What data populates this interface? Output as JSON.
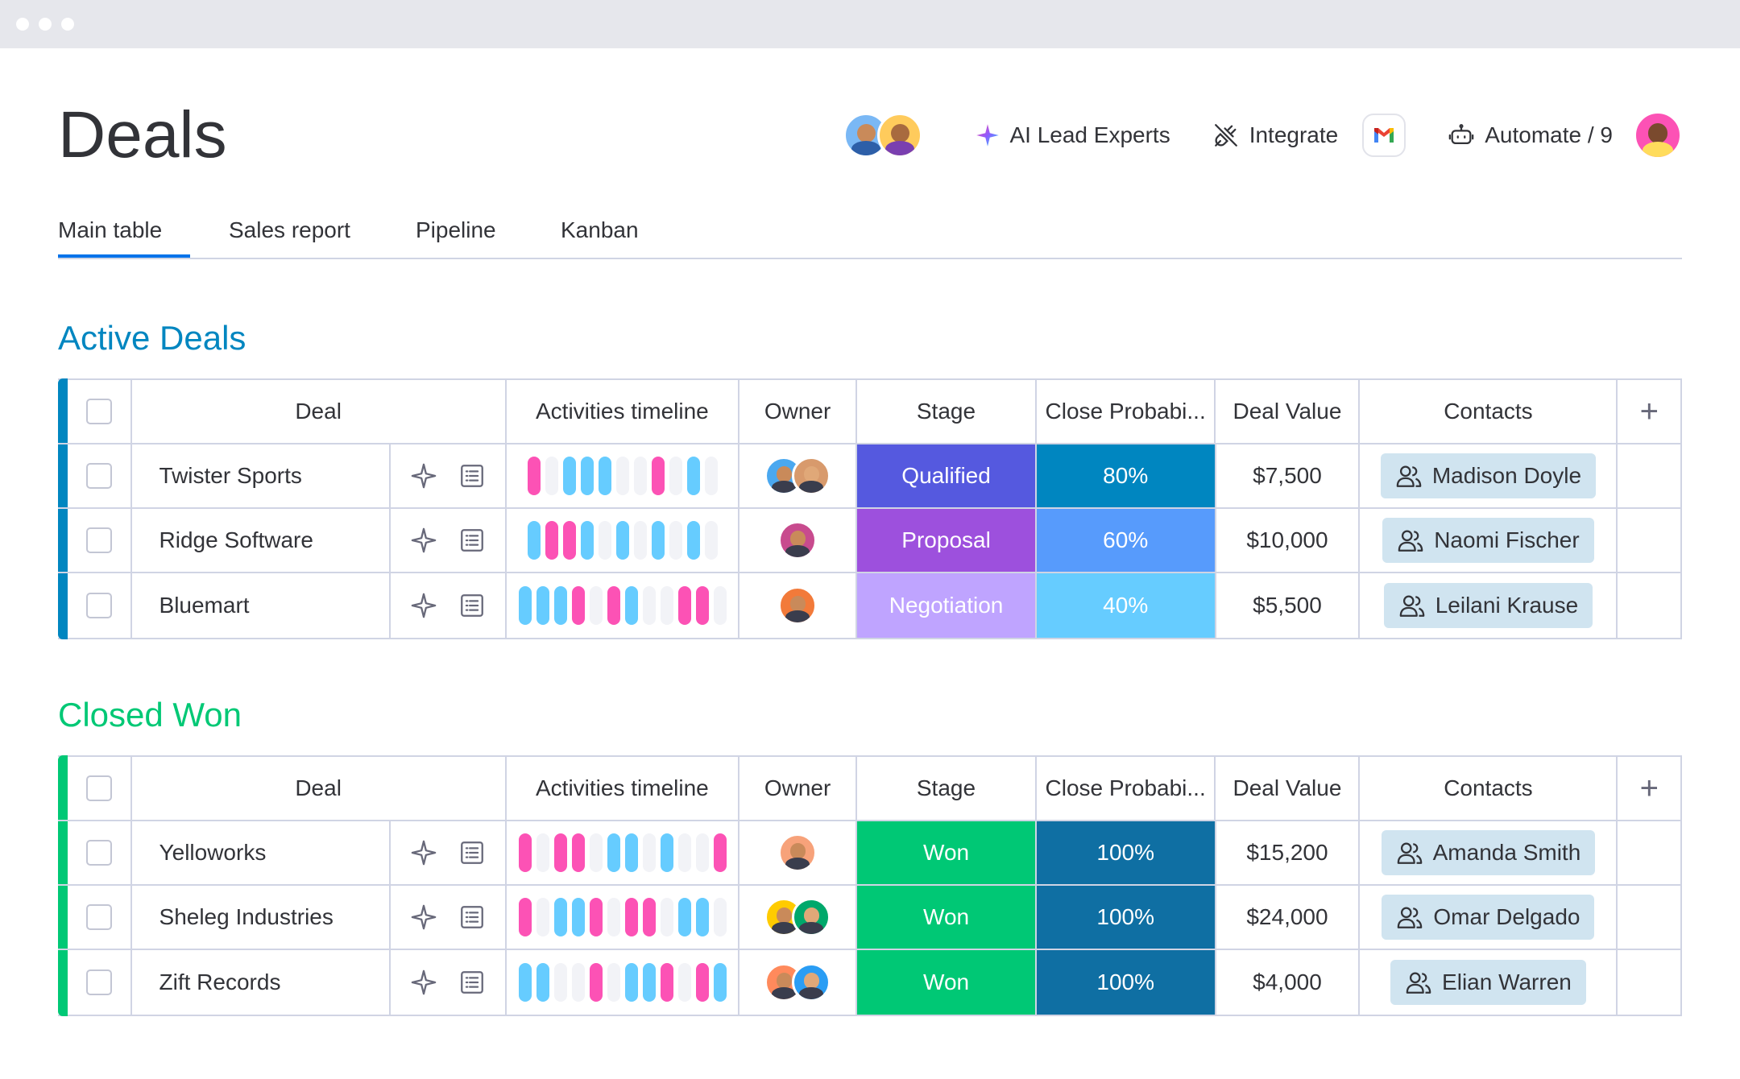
{
  "page": {
    "title": "Deals"
  },
  "header": {
    "actions": [
      {
        "label": "AI Lead Experts",
        "icon": "sparkle-icon"
      },
      {
        "label": "Integrate",
        "icon": "plug-icon"
      },
      {
        "label": "Automate / 9",
        "icon": "robot-icon"
      }
    ]
  },
  "tabs": [
    {
      "label": "Main table",
      "active": true
    },
    {
      "label": "Sales report",
      "active": false
    },
    {
      "label": "Pipeline",
      "active": false
    },
    {
      "label": "Kanban",
      "active": false
    }
  ],
  "columns": {
    "deal": "Deal",
    "activities": "Activities timeline",
    "owner": "Owner",
    "stage": "Stage",
    "probability": "Close Probabi...",
    "value": "Deal Value",
    "contacts": "Contacts",
    "add": "+"
  },
  "colors": {
    "pink": "#fc52b5",
    "blue": "#66ccff",
    "empty": "#f2f3f7",
    "qualified": "#5559df",
    "proposal": "#9d50dd",
    "negotiation": "#bfa4ff",
    "won": "#00c875",
    "p80": "#0086c0",
    "p60": "#579bfc",
    "p40": "#66ccff",
    "p100": "#0f6fa3",
    "active_accent": "#0086c0",
    "won_accent": "#00c875"
  },
  "groups": [
    {
      "title": "Active Deals",
      "color": "#0086c0",
      "rows": [
        {
          "deal": "Twister Sports",
          "timeline": [
            "p",
            "e",
            "b",
            "b",
            "b",
            "e",
            "e",
            "p",
            "e",
            "b",
            "e"
          ],
          "owners": 2,
          "stage": "Qualified",
          "stage_color": "#5559df",
          "probability": "80%",
          "prob_color": "#0086c0",
          "value": "$7,500",
          "contact": "Madison Doyle"
        },
        {
          "deal": "Ridge Software",
          "timeline": [
            "b",
            "p",
            "p",
            "b",
            "e",
            "b",
            "e",
            "b",
            "e",
            "b",
            "e"
          ],
          "owners": 1,
          "stage": "Proposal",
          "stage_color": "#9d50dd",
          "probability": "60%",
          "prob_color": "#579bfc",
          "value": "$10,000",
          "contact": "Naomi Fischer"
        },
        {
          "deal": "Bluemart",
          "timeline": [
            "b",
            "b",
            "b",
            "p",
            "e",
            "p",
            "b",
            "e",
            "e",
            "p",
            "p",
            "e"
          ],
          "owners": 1,
          "stage": "Negotiation",
          "stage_color": "#bfa4ff",
          "probability": "40%",
          "prob_color": "#66ccff",
          "value": "$5,500",
          "contact": "Leilani Krause"
        }
      ]
    },
    {
      "title": "Closed Won",
      "color": "#00c875",
      "rows": [
        {
          "deal": "Yelloworks",
          "timeline": [
            "p",
            "e",
            "p",
            "p",
            "e",
            "b",
            "b",
            "e",
            "b",
            "e",
            "e",
            "p"
          ],
          "owners": 1,
          "stage": "Won",
          "stage_color": "#00c875",
          "probability": "100%",
          "prob_color": "#0f6fa3",
          "value": "$15,200",
          "contact": "Amanda Smith"
        },
        {
          "deal": "Sheleg Industries",
          "timeline": [
            "p",
            "e",
            "b",
            "b",
            "p",
            "e",
            "p",
            "p",
            "e",
            "b",
            "b",
            "e"
          ],
          "owners": 2,
          "stage": "Won",
          "stage_color": "#00c875",
          "probability": "100%",
          "prob_color": "#0f6fa3",
          "value": "$24,000",
          "contact": "Omar Delgado"
        },
        {
          "deal": "Zift Records",
          "timeline": [
            "b",
            "b",
            "e",
            "e",
            "p",
            "e",
            "b",
            "b",
            "p",
            "e",
            "p",
            "b"
          ],
          "owners": 2,
          "stage": "Won",
          "stage_color": "#00c875",
          "probability": "100%",
          "prob_color": "#0f6fa3",
          "value": "$4,000",
          "contact": "Elian Warren"
        }
      ]
    }
  ]
}
